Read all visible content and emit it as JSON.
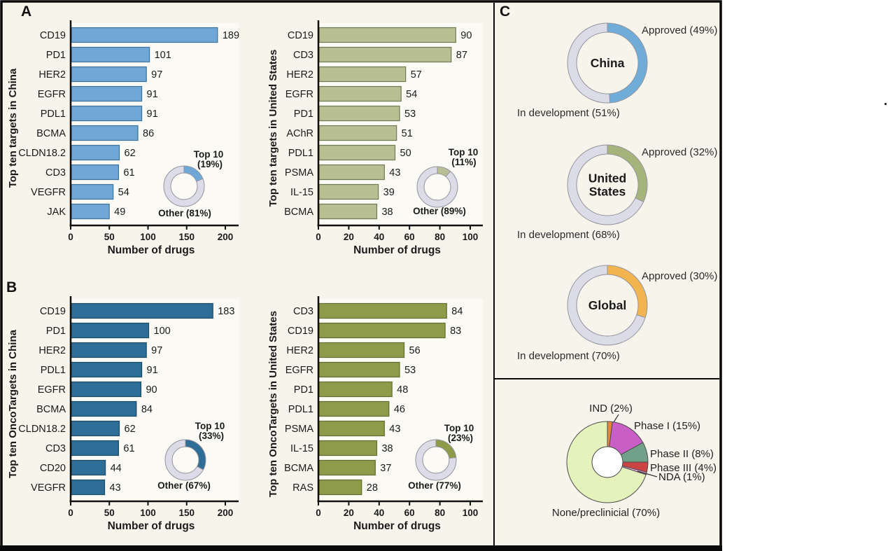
{
  "panels": {
    "a_label": "A",
    "b_label": "B",
    "c_label": "C"
  },
  "colors": {
    "figure_bg": "#f6f4eb",
    "plot_bg": "#fbfaf4",
    "border": "#0a0a0a",
    "ring_base": "#dcdce8",
    "ring_edge": "#94949e",
    "pie_stroke": "#4c4c4c",
    "axis": "#111111"
  },
  "chart_data": [
    {
      "id": "targets_china",
      "panel": "A",
      "type": "bar",
      "orientation": "horizontal",
      "categories": [
        "CD19",
        "PD1",
        "HER2",
        "EGFR",
        "PDL1",
        "BCMA",
        "CLDN18.2",
        "CD3",
        "VEGFR",
        "JAK"
      ],
      "values": [
        189,
        101,
        97,
        91,
        91,
        86,
        62,
        61,
        54,
        49
      ],
      "ylabel": "Top ten targets in China",
      "xlabel": "Number of drugs",
      "xticks": [
        0,
        50,
        100,
        150,
        200
      ],
      "xlim": [
        0,
        215
      ],
      "bar_color": "#6fa8d6",
      "bar_stroke": "#3e7296",
      "value_color": "#5d9bc8",
      "inset": {
        "type": "donut",
        "labels": [
          "Top 10 (19%)",
          "Other (81%)"
        ],
        "values": [
          19,
          81
        ],
        "colors": [
          "#6fa8d6",
          "#dcdce8"
        ],
        "label_lines": [
          "Top 10",
          "(19%)"
        ],
        "other_label": "Other (81%)"
      }
    },
    {
      "id": "targets_us",
      "panel": "A",
      "type": "bar",
      "orientation": "horizontal",
      "categories": [
        "CD19",
        "CD3",
        "HER2",
        "EGFR",
        "PD1",
        "AChR",
        "PDL1",
        "PSMA",
        "IL-15",
        "BCMA"
      ],
      "values": [
        90,
        87,
        57,
        54,
        53,
        51,
        50,
        43,
        39,
        38
      ],
      "ylabel": "Top ten targets in United States",
      "xlabel": "Number of drugs",
      "xticks": [
        0,
        20,
        40,
        60,
        80,
        100
      ],
      "xlim": [
        0,
        107
      ],
      "bar_color": "#b7bf93",
      "bar_stroke": "#6e7a52",
      "value_color": "#a9b287",
      "inset": {
        "type": "donut",
        "labels": [
          "Top 10 (11%)",
          "Other (89%)"
        ],
        "values": [
          11,
          89
        ],
        "colors": [
          "#b7bf93",
          "#dcdce8"
        ],
        "label_lines": [
          "Top 10",
          "(11%)"
        ],
        "other_label": "Other (89%)"
      }
    },
    {
      "id": "oncotargets_china",
      "panel": "B",
      "type": "bar",
      "orientation": "horizontal",
      "categories": [
        "CD19",
        "PD1",
        "HER2",
        "PDL1",
        "EGFR",
        "BCMA",
        "CLDN18.2",
        "CD3",
        "CD20",
        "VEGFR"
      ],
      "values": [
        183,
        100,
        97,
        91,
        90,
        84,
        62,
        61,
        44,
        43
      ],
      "ylabel": "Top ten OncoTargets in China",
      "xlabel": "Number of drugs",
      "xticks": [
        0,
        50,
        100,
        150,
        200
      ],
      "xlim": [
        0,
        215
      ],
      "bar_color": "#2d6d96",
      "bar_stroke": "#1d4a66",
      "value_color": "#3879a2",
      "inset": {
        "type": "donut",
        "labels": [
          "Top 10 (33%)",
          "Other (67%)"
        ],
        "values": [
          33,
          67
        ],
        "colors": [
          "#2d6d96",
          "#dcdce8"
        ],
        "label_lines": [
          "Top 10",
          "(33%)"
        ],
        "other_label": "Other (67%)"
      }
    },
    {
      "id": "oncotargets_us",
      "panel": "B",
      "type": "bar",
      "orientation": "horizontal",
      "categories": [
        "CD3",
        "CD19",
        "HER2",
        "EGFR",
        "PD1",
        "PDL1",
        "PSMA",
        "IL-15",
        "BCMA",
        "RAS"
      ],
      "values": [
        84,
        83,
        56,
        53,
        48,
        46,
        43,
        38,
        37,
        28
      ],
      "ylabel": "Top ten OncoTargets in United States",
      "xlabel": "Number of drugs",
      "xticks": [
        0,
        20,
        40,
        60,
        80,
        100
      ],
      "xlim": [
        0,
        107
      ],
      "bar_color": "#8e9c4a",
      "bar_stroke": "#606d30",
      "value_color": "#8e9c4a",
      "inset": {
        "type": "donut",
        "labels": [
          "Top 10 (23%)",
          "Other (77%)"
        ],
        "values": [
          23,
          77
        ],
        "colors": [
          "#8e9c4a",
          "#dcdce8"
        ],
        "label_lines": [
          "Top 10",
          "(23%)"
        ],
        "other_label": "Other (77%)"
      }
    },
    {
      "id": "status_china",
      "panel": "C",
      "type": "donut",
      "center_label": "China",
      "slices": [
        {
          "label": "Approved (49%)",
          "value": 49,
          "color": "#6fadd8"
        },
        {
          "label": "In development (51%)",
          "value": 51,
          "color": "#dcdce8"
        }
      ]
    },
    {
      "id": "status_us",
      "panel": "C",
      "type": "donut",
      "center_label": "United States",
      "slices": [
        {
          "label": "Approved (32%)",
          "value": 32,
          "color": "#a5b47a"
        },
        {
          "label": "In development (68%)",
          "value": 68,
          "color": "#dcdce8"
        }
      ]
    },
    {
      "id": "status_global",
      "panel": "C",
      "type": "donut",
      "center_label": "Global",
      "slices": [
        {
          "label": "Approved (30%)",
          "value": 30,
          "color": "#f2b44f"
        },
        {
          "label": "In development (70%)",
          "value": 70,
          "color": "#dcdce8"
        }
      ]
    },
    {
      "id": "phase_pie",
      "panel": "C",
      "type": "pie",
      "slices": [
        {
          "label": "IND (2%)",
          "value": 2,
          "color": "#e2873b"
        },
        {
          "label": "Phase I (15%)",
          "value": 15,
          "color": "#c95fc6"
        },
        {
          "label": "Phase II (8%)",
          "value": 8,
          "color": "#71a188"
        },
        {
          "label": "Phase III (4%)",
          "value": 4,
          "color": "#cc4545"
        },
        {
          "label": "NDA (1%)",
          "value": 1,
          "color": "#eda7e0"
        },
        {
          "label": "None/preclinicial (70%)",
          "value": 70,
          "color": "#e4f2bb"
        }
      ]
    }
  ]
}
